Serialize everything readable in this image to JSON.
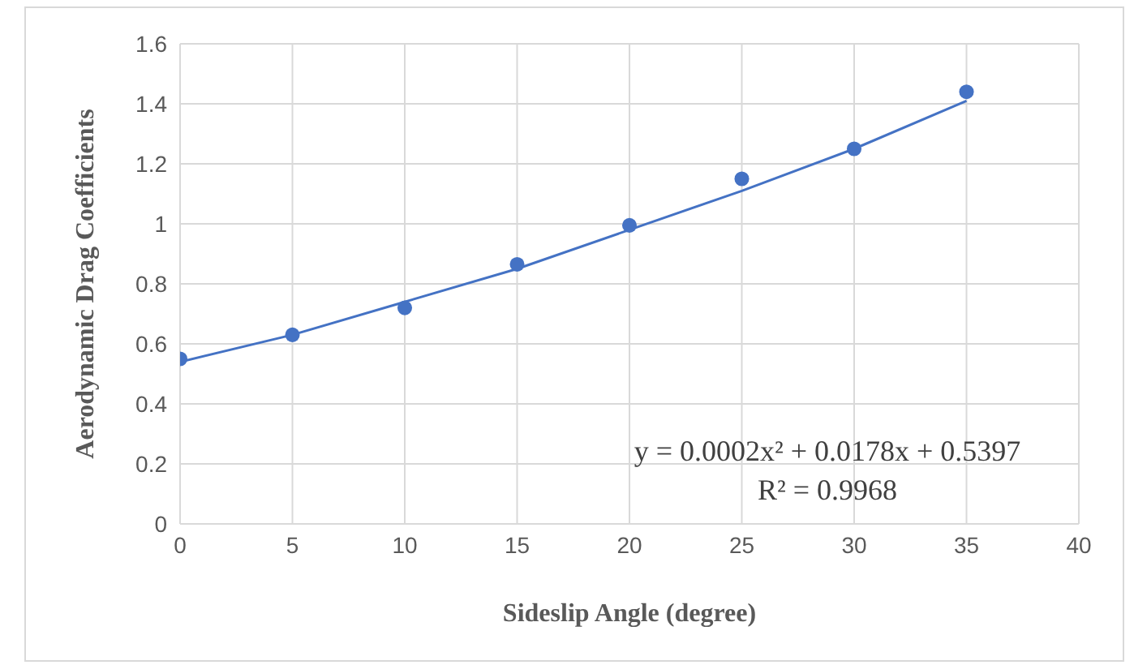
{
  "chart_data": {
    "type": "scatter",
    "xlabel": "Sideslip Angle (degree)",
    "ylabel": "Aerodynamic Drag Coefficients",
    "series": [
      {
        "color": "#4472c4",
        "x": [
          0,
          5,
          10,
          15,
          20,
          25,
          30,
          35
        ],
        "values": [
          0.55,
          0.63,
          0.72,
          0.865,
          0.995,
          1.15,
          1.25,
          1.44
        ]
      },
      {
        "type": "line",
        "color": "#4472c4",
        "marker": "none",
        "x": [
          0,
          5,
          10,
          15,
          20,
          25,
          30,
          35
        ],
        "values": [
          0.54,
          0.63,
          0.74,
          0.85,
          0.98,
          1.11,
          1.25,
          1.41
        ]
      }
    ],
    "xlim": [
      0,
      40
    ],
    "xticks": [
      0,
      5,
      10,
      15,
      20,
      25,
      30,
      35,
      40
    ],
    "ylim": [
      0,
      1.6
    ],
    "yticks": [
      0,
      0.2,
      0.4,
      0.6,
      0.8,
      1,
      1.2,
      1.4,
      1.6
    ],
    "grid": true,
    "marker": "circle",
    "annotations": [
      "y = 0.0002x² + 0.0178x + 0.5397",
      "R² = 0.9968"
    ]
  }
}
